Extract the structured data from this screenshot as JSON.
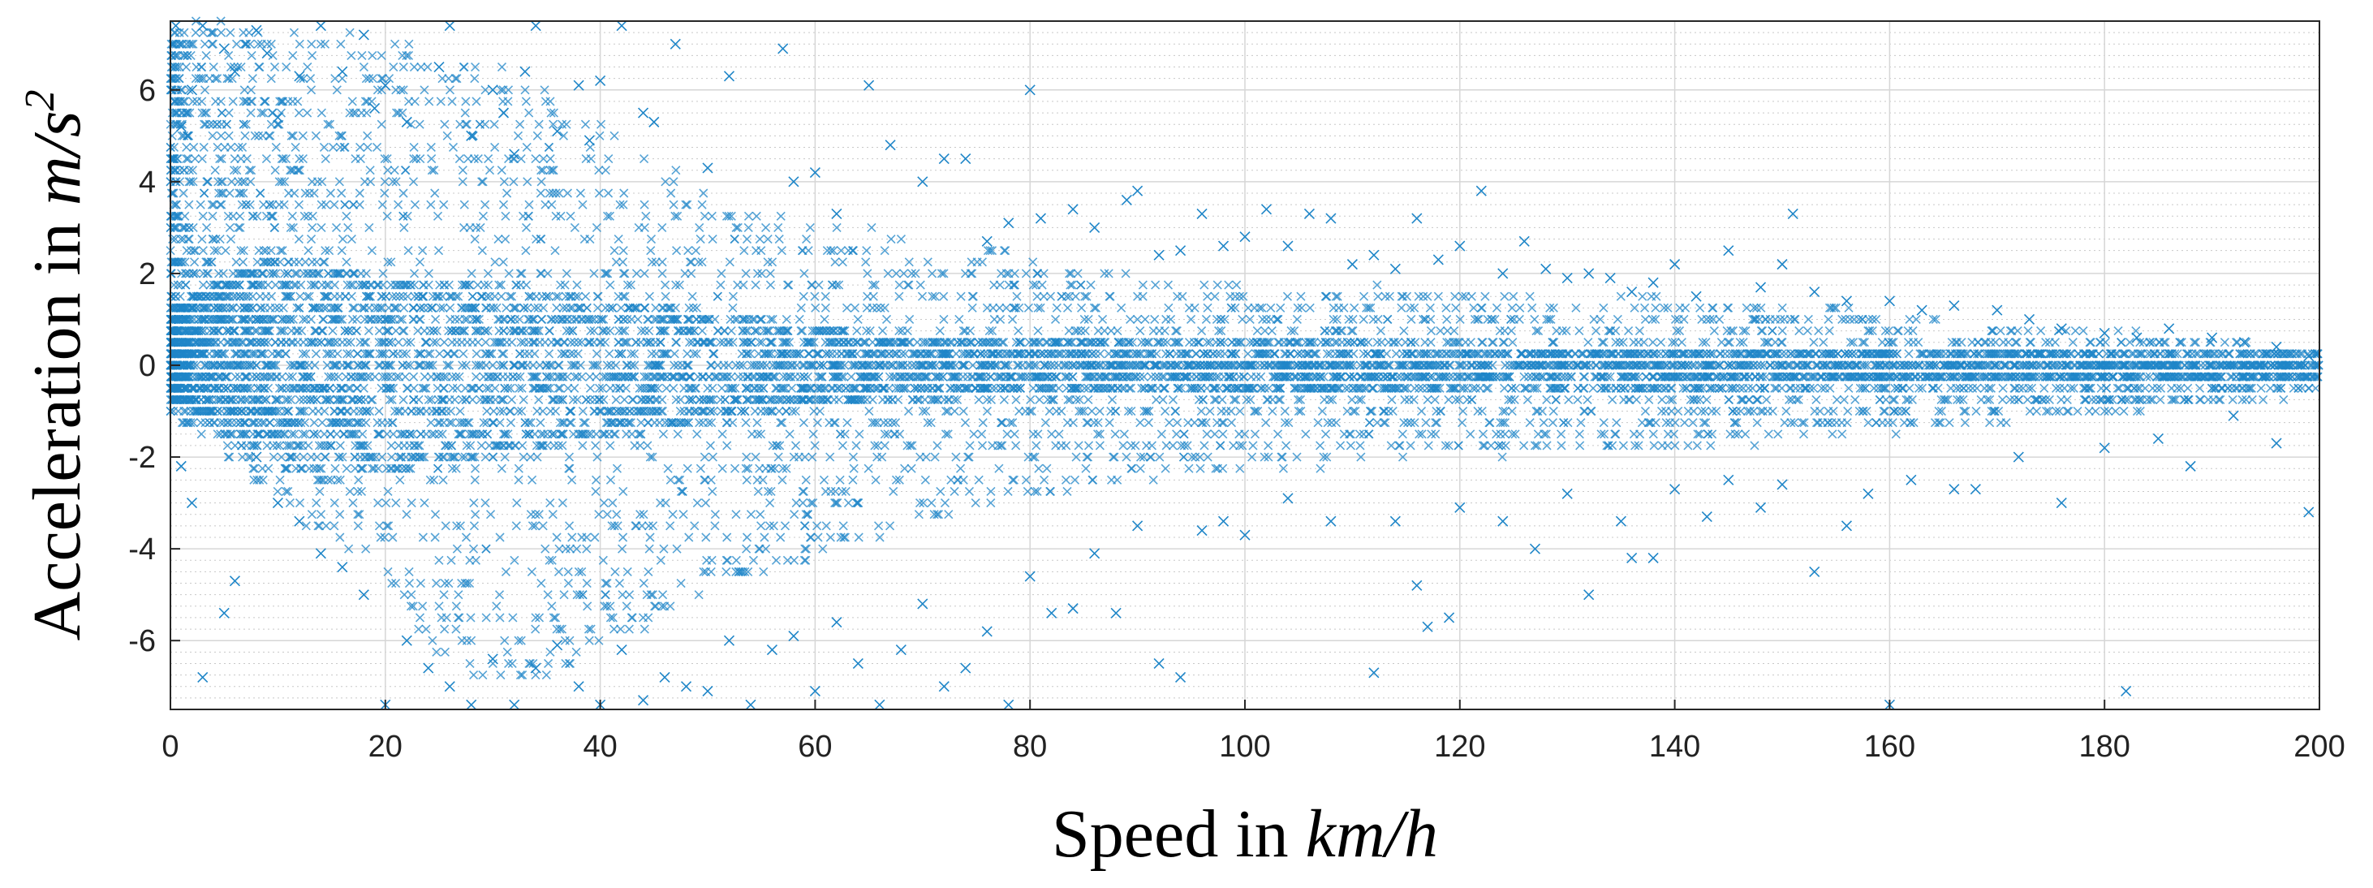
{
  "chart_data": {
    "type": "scatter",
    "title": "",
    "xlabel": "Speed in ",
    "xlabel_unit": "km/h",
    "ylabel": "Acceleration in ",
    "ylabel_unit": "m/s",
    "ylabel_unit_sup": "2",
    "xlim": [
      0,
      200
    ],
    "ylim": [
      -7.5,
      7.5
    ],
    "x_ticks": [
      0,
      20,
      40,
      60,
      80,
      100,
      120,
      140,
      160,
      180,
      200
    ],
    "y_ticks": [
      6,
      4,
      2,
      0,
      -2,
      -4,
      -6
    ],
    "x_tick_labels": [
      "0",
      "20",
      "40",
      "60",
      "80",
      "100",
      "120",
      "140",
      "160",
      "180",
      "200"
    ],
    "y_tick_labels": [
      "6",
      "4",
      "2",
      "0",
      "-2",
      "-4",
      "-6"
    ],
    "grid": true,
    "minor_grid_step_y": 0.25,
    "marker": "x",
    "color": "#1f86c8",
    "series": [
      {
        "values": [
          [
            0.5,
            7.4
          ],
          [
            1.0,
            5.2
          ],
          [
            2.0,
            6.0
          ],
          [
            3.0,
            7.4
          ],
          [
            5.0,
            6.9
          ],
          [
            6.0,
            6.4
          ],
          [
            8.0,
            7.3
          ],
          [
            9.0,
            6.8
          ],
          [
            10.0,
            5.4
          ],
          [
            12.0,
            6.3
          ],
          [
            14.0,
            7.4
          ],
          [
            16.0,
            6.4
          ],
          [
            18.0,
            7.2
          ],
          [
            19.0,
            5.6
          ],
          [
            20.0,
            6.1
          ],
          [
            22.0,
            5.3
          ],
          [
            25.0,
            6.5
          ],
          [
            26.0,
            7.4
          ],
          [
            28.0,
            5.0
          ],
          [
            30.0,
            6.0
          ],
          [
            31.0,
            5.5
          ],
          [
            32.0,
            4.6
          ],
          [
            33.0,
            6.4
          ],
          [
            34.0,
            7.4
          ],
          [
            36.0,
            5.1
          ],
          [
            38.0,
            6.1
          ],
          [
            39.0,
            4.9
          ],
          [
            40.0,
            6.2
          ],
          [
            42.0,
            7.4
          ],
          [
            44.0,
            5.5
          ],
          [
            45.0,
            5.3
          ],
          [
            47.0,
            7.0
          ],
          [
            50.0,
            4.3
          ],
          [
            52.0,
            6.3
          ],
          [
            57.0,
            6.9
          ],
          [
            58.0,
            4.0
          ],
          [
            60.0,
            4.2
          ],
          [
            62.0,
            3.3
          ],
          [
            65.0,
            6.1
          ],
          [
            67.0,
            4.8
          ],
          [
            70.0,
            4.0
          ],
          [
            72.0,
            4.5
          ],
          [
            74.0,
            4.5
          ],
          [
            76.0,
            2.7
          ],
          [
            78.0,
            3.1
          ],
          [
            80.0,
            6.0
          ],
          [
            81.0,
            3.2
          ],
          [
            84.0,
            3.4
          ],
          [
            86.0,
            3.0
          ],
          [
            89.0,
            3.6
          ],
          [
            90.0,
            3.8
          ],
          [
            92.0,
            2.4
          ],
          [
            94.0,
            2.5
          ],
          [
            96.0,
            3.3
          ],
          [
            98.0,
            2.6
          ],
          [
            100.0,
            2.8
          ],
          [
            102.0,
            3.4
          ],
          [
            104.0,
            2.6
          ],
          [
            106.0,
            3.3
          ],
          [
            108.0,
            3.2
          ],
          [
            110.0,
            2.2
          ],
          [
            112.0,
            2.4
          ],
          [
            114.0,
            2.1
          ],
          [
            116.0,
            3.2
          ],
          [
            118.0,
            2.3
          ],
          [
            120.0,
            2.6
          ],
          [
            122.0,
            3.8
          ],
          [
            124.0,
            2.0
          ],
          [
            126.0,
            2.7
          ],
          [
            128.0,
            2.1
          ],
          [
            130.0,
            1.9
          ],
          [
            132.0,
            2.0
          ],
          [
            134.0,
            1.9
          ],
          [
            136.0,
            1.6
          ],
          [
            138.0,
            1.8
          ],
          [
            140.0,
            2.2
          ],
          [
            142.0,
            1.5
          ],
          [
            145.0,
            2.5
          ],
          [
            148.0,
            1.7
          ],
          [
            150.0,
            2.2
          ],
          [
            151.0,
            3.3
          ],
          [
            153.0,
            1.6
          ],
          [
            156.0,
            1.4
          ],
          [
            160.0,
            1.4
          ],
          [
            163.0,
            1.2
          ],
          [
            166.0,
            1.3
          ],
          [
            170.0,
            1.2
          ],
          [
            173.0,
            1.0
          ],
          [
            176.0,
            0.8
          ],
          [
            180.0,
            0.7
          ],
          [
            183.0,
            0.6
          ],
          [
            186.0,
            0.8
          ],
          [
            190.0,
            0.6
          ],
          [
            193.0,
            0.5
          ],
          [
            196.0,
            0.4
          ],
          [
            199.0,
            0.2
          ],
          [
            1.0,
            -2.2
          ],
          [
            2.0,
            -3.0
          ],
          [
            3.0,
            -6.8
          ],
          [
            5.0,
            -5.4
          ],
          [
            6.0,
            -4.7
          ],
          [
            8.0,
            -2.0
          ],
          [
            10.0,
            -3.0
          ],
          [
            12.0,
            -3.4
          ],
          [
            14.0,
            -4.1
          ],
          [
            16.0,
            -4.4
          ],
          [
            18.0,
            -5.0
          ],
          [
            20.0,
            -7.4
          ],
          [
            22.0,
            -6.0
          ],
          [
            24.0,
            -6.6
          ],
          [
            26.0,
            -7.0
          ],
          [
            28.0,
            -7.4
          ],
          [
            30.0,
            -6.4
          ],
          [
            32.0,
            -7.4
          ],
          [
            34.0,
            -6.6
          ],
          [
            36.0,
            -6.1
          ],
          [
            38.0,
            -7.0
          ],
          [
            40.0,
            -7.4
          ],
          [
            42.0,
            -6.2
          ],
          [
            44.0,
            -7.3
          ],
          [
            46.0,
            -6.8
          ],
          [
            48.0,
            -7.0
          ],
          [
            50.0,
            -7.1
          ],
          [
            52.0,
            -6.0
          ],
          [
            54.0,
            -7.4
          ],
          [
            56.0,
            -6.2
          ],
          [
            58.0,
            -5.9
          ],
          [
            60.0,
            -7.1
          ],
          [
            62.0,
            -5.6
          ],
          [
            64.0,
            -6.5
          ],
          [
            66.0,
            -7.4
          ],
          [
            68.0,
            -6.2
          ],
          [
            70.0,
            -5.2
          ],
          [
            72.0,
            -7.0
          ],
          [
            74.0,
            -6.6
          ],
          [
            76.0,
            -5.8
          ],
          [
            78.0,
            -7.4
          ],
          [
            80.0,
            -4.6
          ],
          [
            82.0,
            -5.4
          ],
          [
            84.0,
            -5.3
          ],
          [
            86.0,
            -4.1
          ],
          [
            88.0,
            -5.4
          ],
          [
            90.0,
            -3.5
          ],
          [
            92.0,
            -6.5
          ],
          [
            94.0,
            -6.8
          ],
          [
            96.0,
            -3.6
          ],
          [
            98.0,
            -3.4
          ],
          [
            100.0,
            -3.7
          ],
          [
            104.0,
            -2.9
          ],
          [
            108.0,
            -3.4
          ],
          [
            112.0,
            -6.7
          ],
          [
            114.0,
            -3.4
          ],
          [
            116.0,
            -4.8
          ],
          [
            117.0,
            -5.7
          ],
          [
            119.0,
            -5.5
          ],
          [
            120.0,
            -3.1
          ],
          [
            124.0,
            -3.4
          ],
          [
            127.0,
            -4.0
          ],
          [
            130.0,
            -2.8
          ],
          [
            132.0,
            -5.0
          ],
          [
            135.0,
            -3.4
          ],
          [
            136.0,
            -4.2
          ],
          [
            138.0,
            -4.2
          ],
          [
            140.0,
            -2.7
          ],
          [
            143.0,
            -3.3
          ],
          [
            145.0,
            -2.5
          ],
          [
            148.0,
            -3.1
          ],
          [
            150.0,
            -2.6
          ],
          [
            153.0,
            -4.5
          ],
          [
            156.0,
            -3.5
          ],
          [
            158.0,
            -2.8
          ],
          [
            160.0,
            -7.4
          ],
          [
            162.0,
            -2.5
          ],
          [
            166.0,
            -2.7
          ],
          [
            168.0,
            -2.7
          ],
          [
            172.0,
            -2.0
          ],
          [
            176.0,
            -3.0
          ],
          [
            180.0,
            -1.8
          ],
          [
            182.0,
            -7.1
          ],
          [
            185.0,
            -1.6
          ],
          [
            188.0,
            -2.2
          ],
          [
            192.0,
            -1.1
          ],
          [
            196.0,
            -1.7
          ],
          [
            199.0,
            -3.2
          ]
        ]
      }
    ],
    "density_envelope": {
      "x": [
        0,
        2,
        5,
        10,
        15,
        20,
        25,
        30,
        35,
        40,
        45,
        50,
        55,
        60,
        65,
        70,
        75,
        80,
        85,
        90,
        95,
        100,
        110,
        120,
        130,
        140,
        150,
        160,
        170,
        180,
        190,
        200
      ],
      "upper": [
        7.4,
        7.4,
        7.4,
        7.3,
        7.2,
        7.0,
        6.8,
        6.6,
        6.0,
        5.2,
        4.4,
        3.8,
        3.5,
        3.2,
        3.0,
        2.8,
        2.6,
        2.4,
        2.2,
        2.0,
        1.9,
        1.8,
        1.7,
        1.6,
        1.5,
        1.4,
        1.3,
        1.1,
        0.9,
        0.7,
        0.5,
        0.3
      ],
      "lower": [
        -1.0,
        -1.4,
        -2.0,
        -3.0,
        -4.0,
        -5.0,
        -6.4,
        -7.0,
        -6.8,
        -6.2,
        -5.6,
        -5.0,
        -4.6,
        -4.2,
        -3.8,
        -3.4,
        -3.1,
        -2.9,
        -2.7,
        -2.5,
        -2.4,
        -2.3,
        -2.1,
        -2.0,
        -1.9,
        -1.8,
        -1.6,
        -1.4,
        -1.2,
        -1.0,
        -0.8,
        -0.6
      ]
    },
    "core_envelope": {
      "x": [
        0,
        5,
        10,
        20,
        30,
        40,
        50,
        60,
        70,
        80,
        90,
        100,
        120,
        140,
        160,
        180,
        200
      ],
      "upper": [
        1.2,
        2.0,
        2.4,
        2.0,
        1.8,
        1.5,
        1.1,
        0.8,
        0.6,
        0.5,
        0.5,
        0.6,
        0.4,
        0.4,
        0.3,
        0.3,
        0.2
      ],
      "lower": [
        -0.6,
        -1.6,
        -2.2,
        -2.4,
        -2.1,
        -1.7,
        -1.2,
        -0.9,
        -0.7,
        -0.6,
        -0.6,
        -0.6,
        -0.5,
        -0.5,
        -0.4,
        -0.4,
        -0.3
      ]
    }
  }
}
